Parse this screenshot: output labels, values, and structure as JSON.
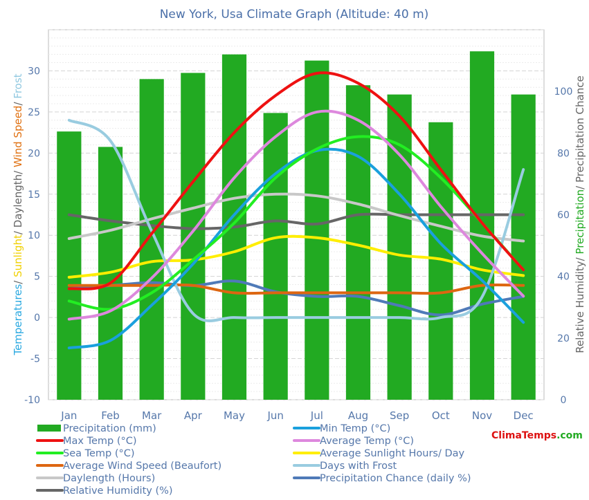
{
  "chart_data": {
    "type": "bar",
    "title": "New York, Usa Climate Graph (Altitude: 40 m)",
    "left_axis_label_parts": [
      {
        "text": "Temperatures",
        "color": "#29a8e0"
      },
      {
        "text": "/ ",
        "color": "#666666"
      },
      {
        "text": "Sunlight",
        "color": "#f0d000"
      },
      {
        "text": "/ Daylength/ ",
        "color": "#666666"
      },
      {
        "text": "Wind Speed",
        "color": "#e07010"
      },
      {
        "text": "/ ",
        "color": "#666666"
      },
      {
        "text": "Frost",
        "color": "#90c8e0"
      }
    ],
    "right_axis_label_parts": [
      {
        "text": "Relative Humidity/ ",
        "color": "#666666"
      },
      {
        "text": "Precipitation",
        "color": "#22aa22"
      },
      {
        "text": "/ Precipitation Chance",
        "color": "#666666"
      }
    ],
    "categories": [
      "Jan",
      "Feb",
      "Mar",
      "Apr",
      "May",
      "Jun",
      "Jul",
      "Aug",
      "Sep",
      "Oct",
      "Nov",
      "Dec"
    ],
    "y_left_ticks": [
      -10,
      -5,
      0,
      5,
      10,
      15,
      20,
      25,
      30
    ],
    "y_right_ticks": [
      0,
      20,
      40,
      60,
      80,
      100
    ],
    "y_left_range": [
      -10,
      35
    ],
    "y_right_range": [
      0,
      120
    ],
    "precipitation_mm": [
      87,
      82,
      104,
      106,
      112,
      93,
      110,
      102,
      99,
      90,
      113,
      99
    ],
    "series": [
      {
        "key": "max_temp",
        "axis": "left",
        "color": "#ee1111",
        "values": [
          3.5,
          4.2,
          10.2,
          16.5,
          22.5,
          27.0,
          29.7,
          28.5,
          24.5,
          18.0,
          11.5,
          5.8
        ]
      },
      {
        "key": "min_temp",
        "axis": "left",
        "color": "#1aa0dd",
        "values": [
          -3.7,
          -2.8,
          1.5,
          6.5,
          12.5,
          17.5,
          20.3,
          19.6,
          15.0,
          9.0,
          4.5,
          -0.6
        ]
      },
      {
        "key": "avg_temp",
        "axis": "left",
        "color": "#dd88dd",
        "values": [
          -0.2,
          0.8,
          4.8,
          10.5,
          17.0,
          22.0,
          25.0,
          24.0,
          19.8,
          13.5,
          7.8,
          2.6
        ]
      },
      {
        "key": "sea_temp",
        "axis": "left",
        "color": "#22ee22",
        "values": [
          2.0,
          1.0,
          3.0,
          7.0,
          11.5,
          17.0,
          20.5,
          22.0,
          21.0,
          17.0,
          11.5,
          5.8
        ]
      },
      {
        "key": "sunlight",
        "axis": "left",
        "color": "#ffee00",
        "values": [
          4.9,
          5.5,
          6.8,
          7.0,
          8.0,
          9.7,
          9.7,
          8.8,
          7.6,
          7.1,
          5.8,
          5.1
        ]
      },
      {
        "key": "wind",
        "axis": "left",
        "color": "#dd6611",
        "values": [
          3.9,
          3.9,
          3.9,
          3.9,
          3.0,
          3.0,
          3.0,
          3.0,
          3.0,
          3.0,
          3.9,
          3.9
        ]
      },
      {
        "key": "frost",
        "axis": "left",
        "color": "#99cce0",
        "values": [
          24.0,
          21.5,
          10.5,
          0.5,
          0.0,
          0.0,
          0.0,
          0.0,
          0.0,
          0.0,
          2.5,
          18.0
        ]
      },
      {
        "key": "daylength",
        "axis": "left",
        "color": "#c8c8c8",
        "values": [
          9.6,
          10.6,
          12.0,
          13.3,
          14.5,
          15.0,
          14.8,
          13.8,
          12.4,
          11.1,
          9.9,
          9.3
        ]
      },
      {
        "key": "precip_chance",
        "axis": "right",
        "color": "#4f7ab8",
        "values": [
          36,
          37,
          38,
          37,
          38.5,
          35,
          33.5,
          33.5,
          30.5,
          27.5,
          31,
          33.5
        ]
      },
      {
        "key": "humidity",
        "axis": "right",
        "color": "#666666",
        "values": [
          60,
          58,
          56.5,
          55.5,
          56,
          58,
          57,
          60,
          60,
          60,
          60,
          60
        ]
      }
    ],
    "legend": [
      {
        "label": "Precipitation (mm)",
        "color": "#22aa22",
        "kind": "bar"
      },
      {
        "label": "Min Temp (°C)",
        "color": "#1aa0dd",
        "kind": "line"
      },
      {
        "label": "Max Temp (°C)",
        "color": "#ee1111",
        "kind": "line"
      },
      {
        "label": "Average Temp (°C)",
        "color": "#dd88dd",
        "kind": "line"
      },
      {
        "label": "Sea Temp (°C)",
        "color": "#22ee22",
        "kind": "line"
      },
      {
        "label": "Average Sunlight Hours/ Day",
        "color": "#ffee00",
        "kind": "line"
      },
      {
        "label": "Average Wind Speed (Beaufort)",
        "color": "#dd6611",
        "kind": "line"
      },
      {
        "label": "Days with Frost",
        "color": "#99cce0",
        "kind": "line"
      },
      {
        "label": "Daylength (Hours)",
        "color": "#c8c8c8",
        "kind": "line"
      },
      {
        "label": "Precipitation Chance (daily %)",
        "color": "#4f7ab8",
        "kind": "line"
      },
      {
        "label": "Relative Humidity (%)",
        "color": "#666666",
        "kind": "line"
      }
    ],
    "legend_placement": "bottom",
    "grid": true,
    "logo": {
      "part1": "Clima",
      "part2": "Temps",
      "part3": ".com",
      "color1": "#dd1111",
      "color2": "#dd1111",
      "color3": "#22aa22"
    }
  }
}
